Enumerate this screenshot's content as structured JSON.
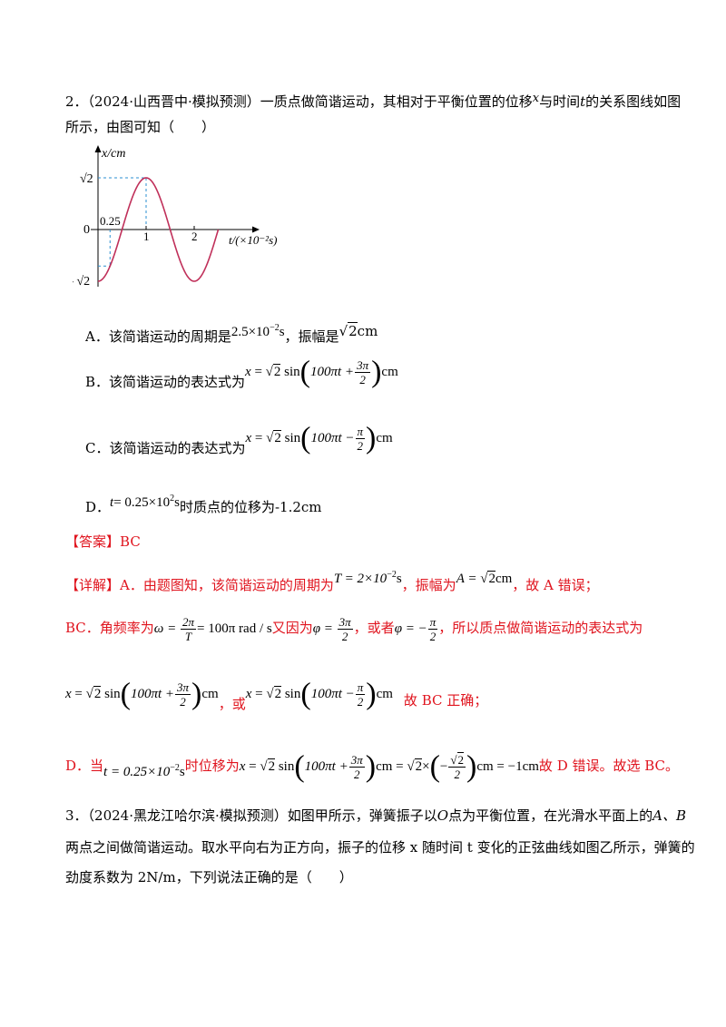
{
  "q2": {
    "number": "2．",
    "source": "（2024·山西晋中·模拟预测）",
    "text_a": "一质点做简谐运动，其相对于平衡位置的位移",
    "var_x": "x",
    "text_b": "与时间",
    "var_t": "t",
    "text_c": "的关系图线如图",
    "line2": "所示，由图可知（　　）"
  },
  "chart_data": {
    "type": "line",
    "ylabel": "x/cm",
    "xlabel": "t/(×10⁻²s)",
    "y_ticks": [
      "√2",
      "0",
      "– √2"
    ],
    "x_ticks": [
      "0.25",
      "1",
      "2"
    ],
    "series": [
      {
        "amplitude": 1.414,
        "period": 2,
        "phase_x_at_zero": -1.414,
        "x_range": [
          0,
          2.5
        ]
      }
    ],
    "ylim": [
      -1.414,
      1.414
    ],
    "xlim": [
      0,
      2.5
    ],
    "dashed_guides": [
      {
        "at_x": 1,
        "at_y": 1.414
      },
      {
        "at_x": 0.25,
        "at_y": -1.0
      }
    ]
  },
  "options": {
    "A_label": "A．该简谐运动的周期是",
    "A_period": "2.5×10",
    "A_exp": "−2",
    "A_unit": "s",
    "A_mid": "，振幅是",
    "A_amp_num": "2",
    "A_amp_unit": "cm",
    "B_label": "B．该简谐运动的表达式为",
    "C_label": "C．该简谐运动的表达式为",
    "D_label": "D．",
    "D_t": "t",
    "D_val": "= 0.25×10",
    "D_exp": "2",
    "D_unit": "s",
    "D_tail": "时质点的位移为-1.2cm"
  },
  "expr": {
    "x": "x",
    "eq": " = ",
    "root": "2",
    "sin": "sin",
    "inner_plus": "100πt +",
    "inner_minus": "100πt −",
    "three_pi": "3π",
    "pi": "π",
    "two": "2",
    "cm": "cm"
  },
  "answer": {
    "label": "【答案】",
    "value": "BC"
  },
  "analysis": {
    "label": "【详解】",
    "a_text": "A．由题图知，该简谐运动的周期为",
    "a_T": "T = 2×10",
    "a_exp": "−2",
    "a_unit": "s",
    "a_mid": "，振幅为",
    "a_A": "A = ",
    "a_root": "2",
    "a_cm": "cm",
    "a_tail": "，故 A 错误；",
    "bc_text": "BC．角频率为",
    "omega": "ω = ",
    "two_pi": "2π",
    "T": "T",
    "omega_val": "= 100π rad / s",
    "because": "又因为",
    "phi": "φ = ",
    "or": "，或者",
    "phi_neg": "φ = −",
    "bc_tail": "，所以质点做简谐运动的表达式为",
    "or2": "，或",
    "correct": "故 BC 正确；",
    "d_text": "D．当",
    "d_t": "t = 0.25×10",
    "d_exp": "−2",
    "d_s": "s",
    "d_mid": "时位移为",
    "d_calc1": "cm = ",
    "d_root": "2",
    "d_times": "×",
    "d_minus": "−",
    "d_calc2": "cm = −1cm",
    "d_tail": "故 D 错误。故选 BC。"
  },
  "q3": {
    "number": "3．",
    "source": "（2024·黑龙江哈尔滨·模拟预测）",
    "line1_a": "如图甲所示，弹簧振子以",
    "O": "O",
    "line1_b": "点为平衡位置，在光滑水平面上的",
    "AB": "A、B",
    "line2": "两点之间做简谐运动。取水平向右为正方向，振子的位移 x 随时间 t 变化的正弦曲线如图乙所示，弹簧的",
    "line3": "劲度系数为 2N/m，下列说法正确的是（　　）"
  },
  "colors": {
    "accent": "#e0141e",
    "curve": "#c0305a",
    "guide": "#2a8fd0"
  }
}
